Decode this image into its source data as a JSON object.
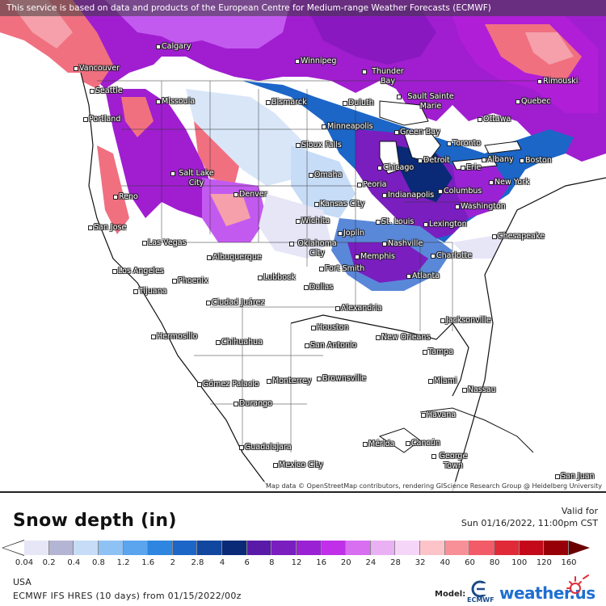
{
  "banner": "This service is based on data and products of the European Centre for Medium-range Weather Forecasts (ECMWF)",
  "attribution": "Map data © OpenStreetMap contributors, rendering GIScience Research Group @ Heidelberg University",
  "cities": [
    {
      "name": "Calgary"
    },
    {
      "name": "Winnipeg"
    },
    {
      "name": "Vancouver"
    },
    {
      "name": "Seattle"
    },
    {
      "name": "Thunder Bay"
    },
    {
      "name": "Rimouski"
    },
    {
      "name": "Missoula"
    },
    {
      "name": "Bismarck"
    },
    {
      "name": "Duluth"
    },
    {
      "name": "Sault Sainte Marie"
    },
    {
      "name": "Quebec"
    },
    {
      "name": "Portland"
    },
    {
      "name": "Minneapolis"
    },
    {
      "name": "Ottawa"
    },
    {
      "name": "Green Bay"
    },
    {
      "name": "Sioux Falls"
    },
    {
      "name": "Toronto"
    },
    {
      "name": "Detroit"
    },
    {
      "name": "Albany"
    },
    {
      "name": "Boston"
    },
    {
      "name": "Chicago"
    },
    {
      "name": "Erie"
    },
    {
      "name": "Salt Lake City"
    },
    {
      "name": "Omaha"
    },
    {
      "name": "New York"
    },
    {
      "name": "Peoria"
    },
    {
      "name": "Denver"
    },
    {
      "name": "Reno"
    },
    {
      "name": "Indianapolis"
    },
    {
      "name": "Columbus"
    },
    {
      "name": "Kansas City"
    },
    {
      "name": "Washington"
    },
    {
      "name": "Wichita"
    },
    {
      "name": "St. Louis"
    },
    {
      "name": "Lexington"
    },
    {
      "name": "San Jose"
    },
    {
      "name": "Joplin"
    },
    {
      "name": "Chesapeake"
    },
    {
      "name": "Las Vegas"
    },
    {
      "name": "Oklahoma City"
    },
    {
      "name": "Nashville"
    },
    {
      "name": "Fort Smith"
    },
    {
      "name": "Memphis"
    },
    {
      "name": "Charlotte"
    },
    {
      "name": "Albuquerque"
    },
    {
      "name": "Los Angeles"
    },
    {
      "name": "Atlanta"
    },
    {
      "name": "Phoenix"
    },
    {
      "name": "Lubbock"
    },
    {
      "name": "Dallas"
    },
    {
      "name": "Tijuana"
    },
    {
      "name": "Ciudad Juárez"
    },
    {
      "name": "Alexandria"
    },
    {
      "name": "Jacksonville"
    },
    {
      "name": "Hermosillo"
    },
    {
      "name": "Houston"
    },
    {
      "name": "New Orleans"
    },
    {
      "name": "Chihuahua"
    },
    {
      "name": "San Antonio"
    },
    {
      "name": "Tampa"
    },
    {
      "name": "Monterrey"
    },
    {
      "name": "Brownsville"
    },
    {
      "name": "Miami"
    },
    {
      "name": "Gómez Palacio"
    },
    {
      "name": "Nassau"
    },
    {
      "name": "Durango"
    },
    {
      "name": "Havana"
    },
    {
      "name": "Mérida"
    },
    {
      "name": "Cancún"
    },
    {
      "name": "Guadalajara"
    },
    {
      "name": "George Town"
    },
    {
      "name": "Mexico City"
    },
    {
      "name": "San Juan"
    }
  ],
  "legend": {
    "title": "Snow depth (in)",
    "valid_label": "Valid for",
    "valid_time": "Sun 01/16/2022, 11:00pm CST",
    "ticks": [
      "0.04",
      "0.2",
      "0.4",
      "0.8",
      "1.2",
      "1.6",
      "2",
      "2.8",
      "4",
      "6",
      "8",
      "12",
      "16",
      "20",
      "24",
      "28",
      "32",
      "40",
      "60",
      "80",
      "100",
      "120",
      "160"
    ],
    "colors": [
      "#e6e6f7",
      "#b4b4d4",
      "#c6dcf7",
      "#8ec2f5",
      "#5aa5ee",
      "#2e86e0",
      "#1c66c8",
      "#1247a0",
      "#0a2a78",
      "#5a1aa8",
      "#7a1ec0",
      "#9a22d4",
      "#c030e8",
      "#d86ef0",
      "#eab0f4",
      "#f6d6f8",
      "#fcc4c8",
      "#f89098",
      "#f25c68",
      "#e02a38",
      "#c40a1a",
      "#980008",
      "#6b0000"
    ]
  },
  "footer": {
    "region": "USA",
    "model_run": "ECMWF IFS HRES (10 days) from 01/15/2022/00z",
    "model_label": "Model:",
    "ecmwf_logo_text": "ECMWF",
    "brand_logo": "weather.us"
  }
}
